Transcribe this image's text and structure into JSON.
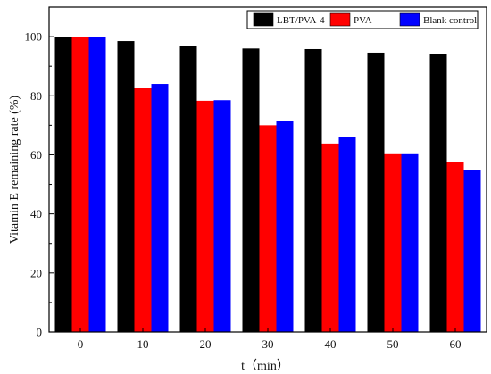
{
  "chart_data": {
    "type": "bar",
    "xlabel": "t（min）",
    "ylabel": "Vitamin E remaining rate (%)",
    "categories": [
      "0",
      "10",
      "20",
      "30",
      "40",
      "50",
      "60"
    ],
    "ylim": [
      0,
      110
    ],
    "yticks": [
      "0",
      "20",
      "40",
      "60",
      "80",
      "100"
    ],
    "grid": false,
    "legend_position": "top-right",
    "series": [
      {
        "name": "LBT/PVA-4",
        "color": "#000000",
        "values": [
          100,
          98.5,
          96.8,
          96.0,
          95.8,
          94.6,
          94.1
        ]
      },
      {
        "name": "PVA",
        "color": "#ff0000",
        "values": [
          100,
          82.5,
          78.3,
          70.0,
          63.8,
          60.5,
          57.5
        ]
      },
      {
        "name": "Blank control",
        "color": "#0000ff",
        "values": [
          100,
          84.0,
          78.5,
          71.5,
          66.0,
          60.5,
          54.8
        ]
      }
    ]
  }
}
